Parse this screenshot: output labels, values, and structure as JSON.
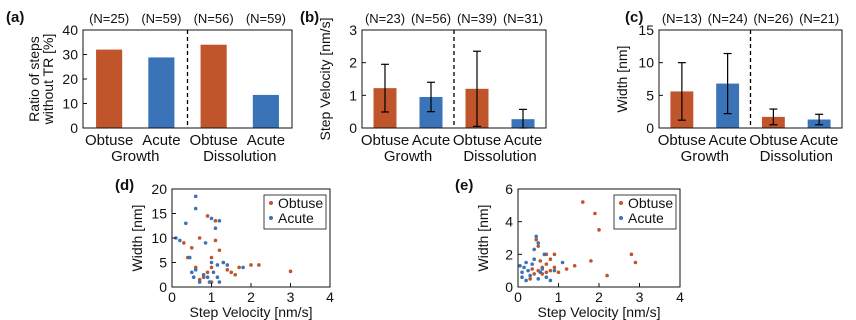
{
  "colors": {
    "obtuse": "#c0542a",
    "acute": "#3a73b8",
    "axis": "#111111"
  },
  "chart_data": [
    {
      "panel": "(a)",
      "type": "bar",
      "ylabel": "Ratio of steps without TR [%]",
      "ylim": [
        0,
        40
      ],
      "yticks": [
        0,
        10,
        20,
        30,
        40
      ],
      "categories": [
        "Obtuse",
        "Acute",
        "Obtuse",
        "Acute"
      ],
      "groups": [
        "Growth",
        "Dissolution"
      ],
      "counts": [
        "(N=25)",
        "(N=59)",
        "(N=56)",
        "(N=59)"
      ],
      "values": [
        32,
        28.8,
        34,
        13.5
      ],
      "series_colors": [
        "obtuse",
        "acute",
        "obtuse",
        "acute"
      ]
    },
    {
      "panel": "(b)",
      "type": "bar",
      "ylabel": "Step Velocity [nm/s]",
      "ylim": [
        0,
        3
      ],
      "yticks": [
        0,
        1,
        2,
        3
      ],
      "categories": [
        "Obtuse",
        "Acute",
        "Obtuse",
        "Acute"
      ],
      "groups": [
        "Growth",
        "Dissolution"
      ],
      "counts": [
        "(N=23)",
        "(N=56)",
        "(N=39)",
        "(N=31)"
      ],
      "values": [
        1.22,
        0.95,
        1.2,
        0.27
      ],
      "errors": [
        0.73,
        0.45,
        1.15,
        0.3
      ],
      "series_colors": [
        "obtuse",
        "acute",
        "obtuse",
        "acute"
      ]
    },
    {
      "panel": "(c)",
      "type": "bar",
      "ylabel": "Width [nm]",
      "ylim": [
        0,
        15
      ],
      "yticks": [
        0,
        5,
        10,
        15
      ],
      "categories": [
        "Obtuse",
        "Acute",
        "Obtuse",
        "Acute"
      ],
      "groups": [
        "Growth",
        "Dissolution"
      ],
      "counts": [
        "(N=13)",
        "(N=24)",
        "(N=26)",
        "(N=21)"
      ],
      "values": [
        5.6,
        6.8,
        1.7,
        1.3
      ],
      "errors": [
        4.4,
        4.6,
        1.2,
        0.8
      ],
      "series_colors": [
        "obtuse",
        "acute",
        "obtuse",
        "acute"
      ]
    },
    {
      "panel": "(d)",
      "type": "scatter",
      "xlabel": "Step Velocity [nm/s]",
      "ylabel": "Width [nm]",
      "xlim": [
        0,
        4
      ],
      "ylim": [
        0,
        20
      ],
      "xticks": [
        0,
        1,
        2,
        3,
        4
      ],
      "yticks": [
        0,
        5,
        10,
        15,
        20
      ],
      "legend_position": "top-right",
      "series": [
        {
          "name": "Obtuse",
          "color": "obtuse",
          "points": [
            [
              0.3,
              9
            ],
            [
              0.5,
              8
            ],
            [
              0.4,
              6
            ],
            [
              0.7,
              10
            ],
            [
              0.9,
              14.5
            ],
            [
              1.1,
              13.5
            ],
            [
              0.6,
              4
            ],
            [
              1.3,
              5
            ],
            [
              1.0,
              4
            ],
            [
              1.2,
              7.5
            ],
            [
              1.5,
              3
            ],
            [
              0.8,
              2
            ],
            [
              1.0,
              1
            ],
            [
              2.0,
              4.5
            ],
            [
              2.2,
              4.5
            ],
            [
              3.0,
              3.2
            ],
            [
              1.7,
              4
            ],
            [
              0.7,
              1.5
            ],
            [
              1.1,
              9.5
            ],
            [
              1.4,
              3.5
            ],
            [
              1.0,
              6
            ],
            [
              1.6,
              2.5
            ],
            [
              0.9,
              3
            ]
          ]
        },
        {
          "name": "Acute",
          "color": "acute",
          "points": [
            [
              0.1,
              10
            ],
            [
              0.2,
              9.5
            ],
            [
              0.35,
              13
            ],
            [
              0.45,
              6
            ],
            [
              0.5,
              3
            ],
            [
              0.55,
              2
            ],
            [
              0.6,
              3.5
            ],
            [
              0.6,
              18.5
            ],
            [
              0.6,
              16
            ],
            [
              0.7,
              1
            ],
            [
              0.8,
              2.5
            ],
            [
              0.85,
              9
            ],
            [
              0.95,
              1
            ],
            [
              1.05,
              3
            ],
            [
              1.0,
              14
            ],
            [
              1.1,
              12
            ],
            [
              1.2,
              13.5
            ],
            [
              1.15,
              2
            ],
            [
              1.2,
              1
            ],
            [
              1.3,
              5
            ],
            [
              1.4,
              4.5
            ],
            [
              1.8,
              4
            ],
            [
              1.0,
              5
            ],
            [
              0.9,
              2
            ],
            [
              1.15,
              4.5
            ]
          ]
        }
      ]
    },
    {
      "panel": "(e)",
      "type": "scatter",
      "xlabel": "Step Velocity [nm/s]",
      "ylabel": "Width [nm]",
      "xlim": [
        0,
        4
      ],
      "ylim": [
        0,
        6
      ],
      "xticks": [
        0,
        1,
        2,
        3,
        4
      ],
      "yticks": [
        0,
        2,
        4,
        6
      ],
      "legend_position": "top-right",
      "series": [
        {
          "name": "Obtuse",
          "color": "obtuse",
          "points": [
            [
              0.3,
              0.5
            ],
            [
              0.4,
              0.8
            ],
            [
              0.45,
              2.9
            ],
            [
              0.5,
              2.5
            ],
            [
              0.5,
              1.0
            ],
            [
              0.6,
              1.2
            ],
            [
              0.6,
              0.8
            ],
            [
              0.7,
              2.0
            ],
            [
              0.7,
              1.4
            ],
            [
              0.8,
              1.0
            ],
            [
              0.9,
              2.0
            ],
            [
              0.9,
              1.2
            ],
            [
              1.0,
              0.9
            ],
            [
              1.2,
              1.1
            ],
            [
              1.4,
              1.3
            ],
            [
              1.6,
              5.2
            ],
            [
              1.8,
              1.6
            ],
            [
              1.9,
              4.5
            ],
            [
              2.0,
              3.5
            ],
            [
              2.2,
              0.7
            ],
            [
              2.8,
              2.0
            ],
            [
              2.9,
              1.5
            ],
            [
              0.55,
              1.6
            ],
            [
              0.35,
              1.1
            ],
            [
              0.8,
              1.7
            ],
            [
              0.7,
              0.9
            ]
          ]
        },
        {
          "name": "Acute",
          "color": "acute",
          "points": [
            [
              0.05,
              1.3
            ],
            [
              0.1,
              0.9
            ],
            [
              0.15,
              1.2
            ],
            [
              0.1,
              0.6
            ],
            [
              0.2,
              1.5
            ],
            [
              0.25,
              1.0
            ],
            [
              0.3,
              0.7
            ],
            [
              0.35,
              1.4
            ],
            [
              0.4,
              2.3
            ],
            [
              0.4,
              1.7
            ],
            [
              0.45,
              3.1
            ],
            [
              0.5,
              2.7
            ],
            [
              0.5,
              0.5
            ],
            [
              0.55,
              0.9
            ],
            [
              0.6,
              1.1
            ],
            [
              0.65,
              2.0
            ],
            [
              0.7,
              0.6
            ],
            [
              0.8,
              0.4
            ],
            [
              0.9,
              1.0
            ],
            [
              1.1,
              1.5
            ],
            [
              0.2,
              0.4
            ]
          ]
        }
      ]
    }
  ]
}
